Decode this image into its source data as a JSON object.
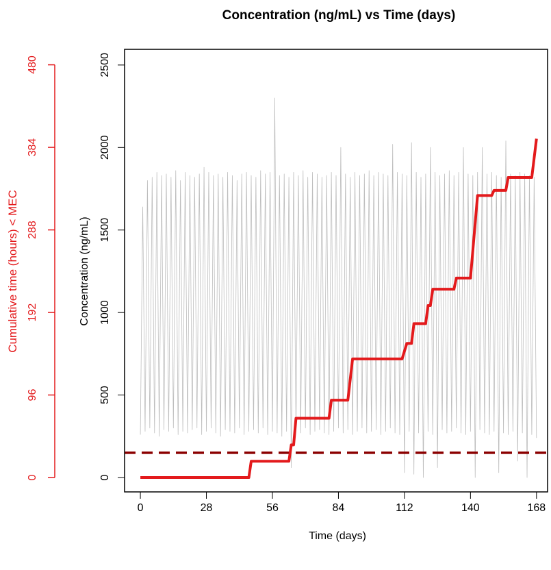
{
  "chart_data": {
    "type": "line",
    "title": "Concentration (ng/mL) vs Time (days)",
    "xlabel": "Time (days)",
    "ylabel": "Concentration (ng/mL)",
    "y2label": "Cumulative time (hours) < MEC",
    "xlim": [
      -6.7,
      172.7
    ],
    "xticks": [
      0,
      28,
      56,
      84,
      112,
      140,
      168
    ],
    "ylim": [
      -87,
      2595
    ],
    "yticks": [
      0,
      500,
      1000,
      1500,
      2000,
      2500
    ],
    "y2lim": [
      -16.7,
      498
    ],
    "y2ticks": [
      0,
      96,
      192,
      288,
      384,
      480
    ],
    "y2color": "#e31a1c",
    "hlines": [
      {
        "value": 150,
        "color": "#8b0000"
      }
    ],
    "series": [
      {
        "color": "#bdbdbd",
        "axis": "y",
        "width": 0.8,
        "x": [
          0,
          1,
          2,
          3,
          4,
          5,
          6,
          7,
          8,
          9,
          10,
          11,
          12,
          13,
          14,
          15,
          16,
          17,
          18,
          19,
          20,
          21,
          22,
          23,
          24,
          25,
          26,
          27,
          28,
          29,
          30,
          31,
          32,
          33,
          34,
          35,
          36,
          37,
          38,
          39,
          40,
          41,
          42,
          43,
          44,
          45,
          46,
          47,
          48,
          49,
          50,
          51,
          52,
          53,
          54,
          55,
          56,
          57,
          58,
          59,
          60,
          61,
          62,
          63,
          64,
          65,
          66,
          67,
          68,
          69,
          70,
          71,
          72,
          73,
          74,
          75,
          76,
          77,
          78,
          79,
          80,
          81,
          82,
          83,
          84,
          85,
          86,
          87,
          88,
          89,
          90,
          91,
          92,
          93,
          94,
          95,
          96,
          97,
          98,
          99,
          100,
          101,
          102,
          103,
          104,
          105,
          106,
          107,
          108,
          109,
          110,
          111,
          112,
          113,
          114,
          115,
          116,
          117,
          118,
          119,
          120,
          121,
          122,
          123,
          124,
          125,
          126,
          127,
          128,
          129,
          130,
          131,
          132,
          133,
          134,
          135,
          136,
          137,
          138,
          139,
          140,
          141,
          142,
          143,
          144,
          145,
          146,
          147,
          148,
          149,
          150,
          151,
          152,
          153,
          154,
          155,
          156,
          157,
          158,
          159,
          160,
          161,
          162,
          163,
          164,
          165,
          166,
          167,
          168
        ],
        "values": [
          260,
          1640,
          280,
          1800,
          300,
          1820,
          270,
          1850,
          250,
          1830,
          290,
          1840,
          280,
          1820,
          300,
          1860,
          260,
          1800,
          280,
          1850,
          270,
          1830,
          290,
          1820,
          300,
          1840,
          260,
          1880,
          280,
          1850,
          300,
          1830,
          270,
          1840,
          250,
          1820,
          290,
          1850,
          280,
          1830,
          270,
          1800,
          300,
          1840,
          260,
          1850,
          280,
          1830,
          290,
          1820,
          270,
          1860,
          300,
          1840,
          260,
          1850,
          280,
          2300,
          270,
          1830,
          250,
          1840,
          280,
          1820,
          60,
          1850,
          290,
          1830,
          270,
          1860,
          300,
          1820,
          260,
          1850,
          280,
          1840,
          290,
          1820,
          270,
          1830,
          260,
          1850,
          280,
          1830,
          300,
          2000,
          270,
          1840,
          290,
          1820,
          260,
          1850,
          280,
          1830,
          300,
          1840,
          270,
          1860,
          280,
          1830,
          290,
          1850,
          260,
          1840,
          280,
          1830,
          300,
          2020,
          270,
          1850,
          260,
          1840,
          30,
          1830,
          280,
          2030,
          20,
          1850,
          270,
          1820,
          0,
          1840,
          280,
          2000,
          260,
          1850,
          60,
          1830,
          290,
          1840,
          270,
          1860,
          280,
          1830,
          300,
          1850,
          270,
          2000,
          260,
          1840,
          280,
          1830,
          0,
          1850,
          290,
          2000,
          270,
          1840,
          260,
          1850,
          280,
          1830,
          30,
          1820,
          270,
          2040,
          260,
          1840,
          280,
          1830,
          100,
          1850,
          270,
          1840,
          0,
          1830,
          260,
          1820,
          240
        ]
      },
      {
        "color": "#e31a1c",
        "axis": "y2",
        "width": 4,
        "x": [
          0,
          46,
          47,
          63,
          64,
          65,
          66,
          80,
          81,
          88,
          90,
          111,
          113,
          115,
          116,
          121,
          122,
          123,
          124,
          133,
          134,
          140,
          143,
          149,
          150,
          155,
          156,
          166,
          168
        ],
        "values": [
          0,
          0,
          19,
          19,
          38,
          38,
          69,
          69,
          90,
          90,
          138,
          138,
          156,
          156,
          179,
          179,
          200,
          200,
          219,
          219,
          232,
          232,
          328,
          328,
          334,
          334,
          349,
          349,
          394
        ]
      }
    ]
  }
}
